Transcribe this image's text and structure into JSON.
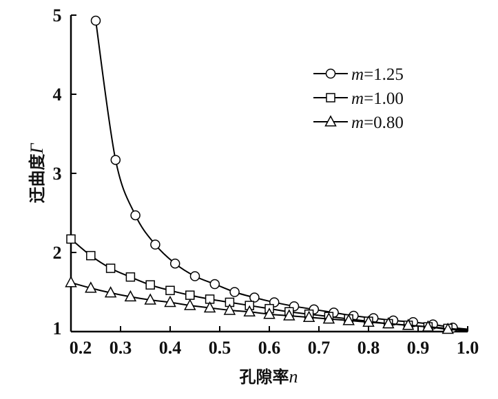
{
  "chart_data": {
    "type": "line",
    "title": "",
    "xlabel": "孔隙率",
    "xlabel_var": "n",
    "ylabel": "迂曲度",
    "ylabel_var": "Γ",
    "xlim": [
      0.2,
      1.0
    ],
    "ylim": [
      1,
      5
    ],
    "xticks": [
      "0.2",
      "0.3",
      "0.4",
      "0.5",
      "0.6",
      "0.7",
      "0.8",
      "0.9",
      "1.0"
    ],
    "yticks": [
      "1",
      "2",
      "3",
      "4",
      "5"
    ],
    "grid": false,
    "legend_position": "top-right",
    "series": [
      {
        "name_var": "m",
        "name_value": "=1.25",
        "marker": "circle",
        "x": [
          0.25,
          0.29,
          0.33,
          0.37,
          0.41,
          0.45,
          0.49,
          0.53,
          0.57,
          0.61,
          0.65,
          0.69,
          0.73,
          0.77,
          0.81,
          0.85,
          0.89,
          0.93,
          0.97
        ],
        "y": [
          4.93,
          3.17,
          2.47,
          2.1,
          1.86,
          1.7,
          1.6,
          1.5,
          1.43,
          1.37,
          1.32,
          1.28,
          1.24,
          1.2,
          1.17,
          1.14,
          1.12,
          1.09,
          1.05
        ]
      },
      {
        "name_var": "m",
        "name_value": "=1.00",
        "marker": "square",
        "x": [
          0.2,
          0.24,
          0.28,
          0.32,
          0.36,
          0.4,
          0.44,
          0.48,
          0.52,
          0.56,
          0.6,
          0.64,
          0.68,
          0.72,
          0.76,
          0.8,
          0.84,
          0.88,
          0.92,
          0.96
        ],
        "y": [
          2.17,
          1.96,
          1.8,
          1.69,
          1.59,
          1.52,
          1.46,
          1.41,
          1.37,
          1.33,
          1.29,
          1.25,
          1.22,
          1.19,
          1.16,
          1.13,
          1.1,
          1.08,
          1.06,
          1.04
        ]
      },
      {
        "name_var": "m",
        "name_value": "=0.80",
        "marker": "triangle",
        "x": [
          0.2,
          0.24,
          0.28,
          0.32,
          0.36,
          0.4,
          0.44,
          0.48,
          0.52,
          0.56,
          0.6,
          0.64,
          0.68,
          0.72,
          0.76,
          0.8,
          0.84,
          0.88,
          0.92,
          0.96
        ],
        "y": [
          1.62,
          1.55,
          1.49,
          1.44,
          1.4,
          1.37,
          1.33,
          1.3,
          1.27,
          1.25,
          1.22,
          1.2,
          1.18,
          1.16,
          1.14,
          1.12,
          1.1,
          1.08,
          1.06,
          1.03
        ]
      }
    ]
  }
}
